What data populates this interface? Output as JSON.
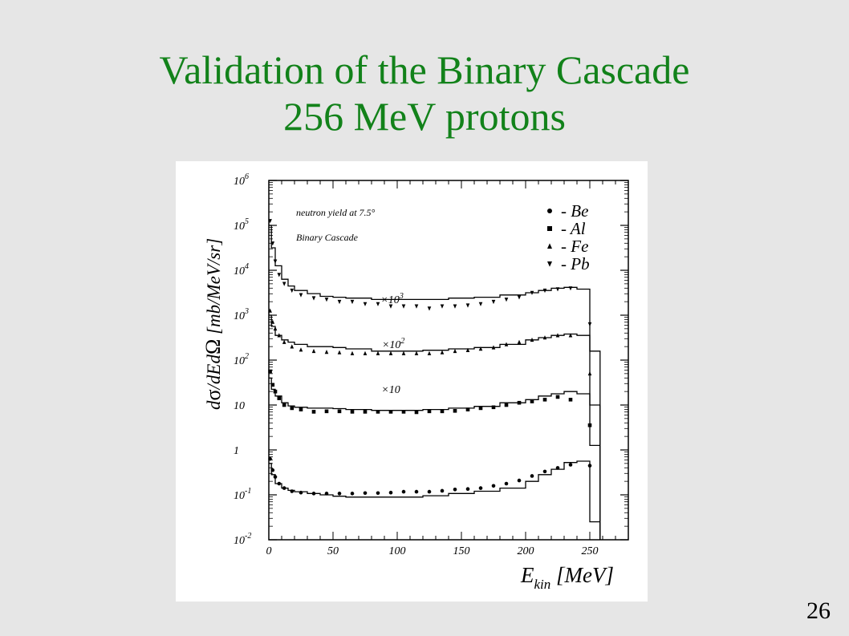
{
  "slide": {
    "title_line1": "Validation of the Binary Cascade",
    "title_line2": "256 MeV protons",
    "page_number": "26"
  },
  "chart_data": {
    "type": "scatter",
    "annotations": [
      "neutron yield at 7.5°",
      "Binary Cascade"
    ],
    "ylabel_parts": {
      "d": "d",
      "sigma": "σ",
      "mid": "/dEd",
      "omega": "Ω",
      "units": " [mb/MeV/sr]"
    },
    "xlabel_parts": {
      "E": "E",
      "sub": "kin",
      "units": " [MeV]"
    },
    "xlim": [
      0,
      280
    ],
    "ylim_log10": [
      -2,
      6
    ],
    "x_ticks": [
      {
        "v": 0,
        "label": "0"
      },
      {
        "v": 50,
        "label": "50"
      },
      {
        "v": 100,
        "label": "100"
      },
      {
        "v": 150,
        "label": "150"
      },
      {
        "v": 200,
        "label": "200"
      },
      {
        "v": 250,
        "label": "250"
      }
    ],
    "y_ticks": [
      {
        "e": 6,
        "base": "10",
        "exp": "6"
      },
      {
        "e": 5,
        "base": "10",
        "exp": "5"
      },
      {
        "e": 4,
        "base": "10",
        "exp": "4"
      },
      {
        "e": 3,
        "base": "10",
        "exp": "3"
      },
      {
        "e": 2,
        "base": "10",
        "exp": "2"
      },
      {
        "e": 1,
        "base": "10",
        "exp": ""
      },
      {
        "e": 0,
        "base": "1",
        "exp": ""
      },
      {
        "e": -1,
        "base": "10",
        "exp": "-1"
      },
      {
        "e": -2,
        "base": "10",
        "exp": "-2"
      }
    ],
    "legend": {
      "placement": "top-right",
      "entries": [
        {
          "marker": "circle",
          "text": "- Be"
        },
        {
          "marker": "square",
          "text": "- Al"
        },
        {
          "marker": "triangle-up",
          "text": "- Fe"
        },
        {
          "marker": "triangle-down",
          "text": "- Pb"
        }
      ]
    },
    "scale_labels": [
      {
        "series": "Al",
        "times": "×10",
        "exp": "",
        "x": 95,
        "logy": 1.27
      },
      {
        "series": "Fe",
        "times": "×10",
        "exp": "2",
        "x": 97,
        "logy": 2.27
      },
      {
        "series": "Pb",
        "times": "×10",
        "exp": "3",
        "x": 96,
        "logy": 3.27
      }
    ],
    "series": [
      {
        "name": "Be",
        "marker": "circle",
        "points": [
          [
            1,
            -0.2
          ],
          [
            3,
            -0.45
          ],
          [
            5,
            -0.6
          ],
          [
            8,
            -0.75
          ],
          [
            12,
            -0.85
          ],
          [
            18,
            -0.92
          ],
          [
            25,
            -0.95
          ],
          [
            35,
            -0.97
          ],
          [
            45,
            -0.97
          ],
          [
            55,
            -0.97
          ],
          [
            65,
            -0.97
          ],
          [
            75,
            -0.96
          ],
          [
            85,
            -0.96
          ],
          [
            95,
            -0.95
          ],
          [
            105,
            -0.93
          ],
          [
            115,
            -0.93
          ],
          [
            125,
            -0.93
          ],
          [
            135,
            -0.91
          ],
          [
            145,
            -0.88
          ],
          [
            155,
            -0.87
          ],
          [
            165,
            -0.85
          ],
          [
            175,
            -0.8
          ],
          [
            185,
            -0.75
          ],
          [
            195,
            -0.68
          ],
          [
            205,
            -0.58
          ],
          [
            215,
            -0.48
          ],
          [
            225,
            -0.4
          ],
          [
            235,
            -0.33
          ],
          [
            250,
            -0.35
          ]
        ],
        "histogram": [
          [
            0,
            -0.3
          ],
          [
            2,
            -0.55
          ],
          [
            5,
            -0.75
          ],
          [
            10,
            -0.85
          ],
          [
            15,
            -0.9
          ],
          [
            20,
            -0.93
          ],
          [
            30,
            -0.97
          ],
          [
            40,
            -1.0
          ],
          [
            50,
            -1.03
          ],
          [
            60,
            -1.05
          ],
          [
            80,
            -1.05
          ],
          [
            100,
            -1.05
          ],
          [
            120,
            -1.02
          ],
          [
            140,
            -0.97
          ],
          [
            160,
            -0.92
          ],
          [
            180,
            -0.85
          ],
          [
            200,
            -0.7
          ],
          [
            210,
            -0.55
          ],
          [
            220,
            -0.43
          ],
          [
            230,
            -0.28
          ],
          [
            240,
            -0.25
          ],
          [
            250,
            -1.6
          ],
          [
            258,
            -1.6
          ]
        ]
      },
      {
        "name": "Al",
        "marker": "square",
        "points": [
          [
            1,
            1.75
          ],
          [
            3,
            1.45
          ],
          [
            5,
            1.3
          ],
          [
            8,
            1.15
          ],
          [
            12,
            1.0
          ],
          [
            18,
            0.93
          ],
          [
            25,
            0.9
          ],
          [
            35,
            0.85
          ],
          [
            45,
            0.86
          ],
          [
            55,
            0.86
          ],
          [
            65,
            0.85
          ],
          [
            75,
            0.85
          ],
          [
            85,
            0.85
          ],
          [
            95,
            0.85
          ],
          [
            105,
            0.85
          ],
          [
            115,
            0.84
          ],
          [
            125,
            0.86
          ],
          [
            135,
            0.86
          ],
          [
            145,
            0.87
          ],
          [
            155,
            0.9
          ],
          [
            165,
            0.93
          ],
          [
            175,
            0.95
          ],
          [
            185,
            1.0
          ],
          [
            195,
            1.05
          ],
          [
            205,
            1.08
          ],
          [
            215,
            1.12
          ],
          [
            225,
            1.18
          ],
          [
            235,
            1.12
          ],
          [
            250,
            0.55
          ]
        ],
        "histogram": [
          [
            0,
            1.6
          ],
          [
            2,
            1.35
          ],
          [
            5,
            1.2
          ],
          [
            10,
            1.05
          ],
          [
            15,
            0.98
          ],
          [
            20,
            0.95
          ],
          [
            30,
            0.93
          ],
          [
            40,
            0.93
          ],
          [
            50,
            0.92
          ],
          [
            60,
            0.9
          ],
          [
            80,
            0.88
          ],
          [
            100,
            0.88
          ],
          [
            120,
            0.9
          ],
          [
            140,
            0.93
          ],
          [
            160,
            0.97
          ],
          [
            180,
            1.05
          ],
          [
            200,
            1.12
          ],
          [
            210,
            1.2
          ],
          [
            220,
            1.25
          ],
          [
            230,
            1.3
          ],
          [
            240,
            1.25
          ],
          [
            250,
            0.1
          ],
          [
            258,
            0.1
          ]
        ]
      },
      {
        "name": "Fe",
        "marker": "triangle-up",
        "points": [
          [
            1,
            3.1
          ],
          [
            3,
            2.85
          ],
          [
            5,
            2.7
          ],
          [
            8,
            2.55
          ],
          [
            12,
            2.4
          ],
          [
            18,
            2.3
          ],
          [
            25,
            2.23
          ],
          [
            35,
            2.2
          ],
          [
            45,
            2.18
          ],
          [
            55,
            2.17
          ],
          [
            65,
            2.15
          ],
          [
            75,
            2.15
          ],
          [
            85,
            2.15
          ],
          [
            95,
            2.15
          ],
          [
            105,
            2.15
          ],
          [
            115,
            2.15
          ],
          [
            125,
            2.15
          ],
          [
            135,
            2.17
          ],
          [
            145,
            2.2
          ],
          [
            155,
            2.22
          ],
          [
            165,
            2.25
          ],
          [
            175,
            2.28
          ],
          [
            185,
            2.35
          ],
          [
            195,
            2.4
          ],
          [
            205,
            2.45
          ],
          [
            215,
            2.5
          ],
          [
            225,
            2.55
          ],
          [
            235,
            2.55
          ],
          [
            250,
            1.7
          ]
        ],
        "histogram": [
          [
            0,
            3.0
          ],
          [
            2,
            2.75
          ],
          [
            5,
            2.55
          ],
          [
            10,
            2.45
          ],
          [
            15,
            2.4
          ],
          [
            20,
            2.35
          ],
          [
            30,
            2.3
          ],
          [
            40,
            2.3
          ],
          [
            50,
            2.28
          ],
          [
            60,
            2.25
          ],
          [
            80,
            2.2
          ],
          [
            100,
            2.2
          ],
          [
            120,
            2.22
          ],
          [
            140,
            2.25
          ],
          [
            160,
            2.28
          ],
          [
            180,
            2.35
          ],
          [
            200,
            2.45
          ],
          [
            210,
            2.5
          ],
          [
            220,
            2.55
          ],
          [
            230,
            2.58
          ],
          [
            240,
            2.55
          ],
          [
            250,
            1.0
          ],
          [
            258,
            1.0
          ]
        ]
      },
      {
        "name": "Pb",
        "marker": "triangle-down",
        "points": [
          [
            1,
            5.1
          ],
          [
            3,
            4.6
          ],
          [
            5,
            4.2
          ],
          [
            8,
            3.9
          ],
          [
            12,
            3.7
          ],
          [
            18,
            3.55
          ],
          [
            25,
            3.45
          ],
          [
            35,
            3.38
          ],
          [
            45,
            3.35
          ],
          [
            55,
            3.3
          ],
          [
            65,
            3.3
          ],
          [
            75,
            3.25
          ],
          [
            85,
            3.25
          ],
          [
            95,
            3.2
          ],
          [
            105,
            3.2
          ],
          [
            115,
            3.2
          ],
          [
            125,
            3.15
          ],
          [
            135,
            3.2
          ],
          [
            145,
            3.2
          ],
          [
            155,
            3.22
          ],
          [
            165,
            3.25
          ],
          [
            175,
            3.3
          ],
          [
            185,
            3.35
          ],
          [
            195,
            3.4
          ],
          [
            205,
            3.5
          ],
          [
            215,
            3.55
          ],
          [
            225,
            3.58
          ],
          [
            235,
            3.6
          ],
          [
            250,
            2.8
          ]
        ],
        "histogram": [
          [
            0,
            5.0
          ],
          [
            2,
            4.5
          ],
          [
            5,
            4.1
          ],
          [
            10,
            3.8
          ],
          [
            15,
            3.65
          ],
          [
            20,
            3.55
          ],
          [
            30,
            3.48
          ],
          [
            40,
            3.42
          ],
          [
            50,
            3.4
          ],
          [
            60,
            3.38
          ],
          [
            80,
            3.35
          ],
          [
            100,
            3.35
          ],
          [
            120,
            3.35
          ],
          [
            140,
            3.38
          ],
          [
            160,
            3.4
          ],
          [
            180,
            3.45
          ],
          [
            200,
            3.5
          ],
          [
            210,
            3.55
          ],
          [
            220,
            3.6
          ],
          [
            230,
            3.62
          ],
          [
            240,
            3.58
          ],
          [
            250,
            2.2
          ],
          [
            258,
            2.2
          ]
        ]
      }
    ]
  }
}
